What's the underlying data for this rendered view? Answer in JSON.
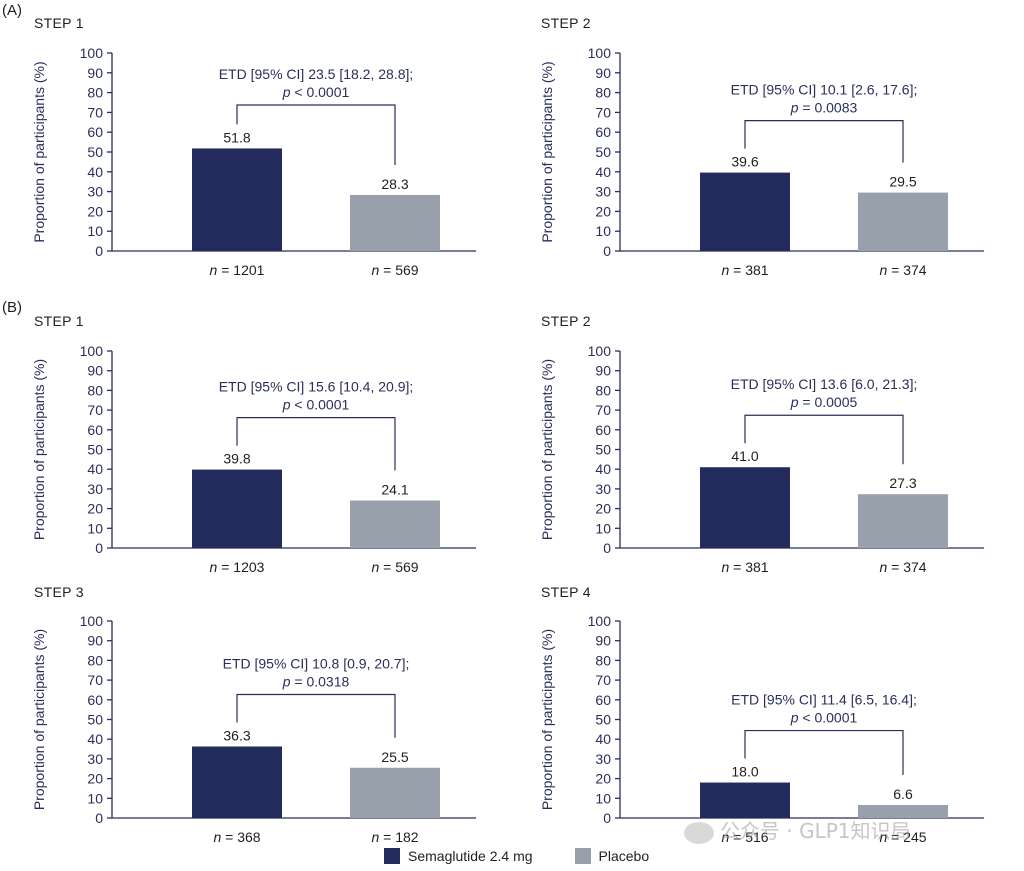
{
  "section_labels": [
    "(A)",
    "(B)"
  ],
  "colors": {
    "semaglutide": "#232a5c",
    "placebo": "#97a0ab",
    "axis": "#2a2f5a"
  },
  "legend": {
    "semaglutide": "Semaglutide 2.4 mg",
    "placebo": "Placebo"
  },
  "watermark": "公众号 · GLP1知识局",
  "chart_data": [
    {
      "type": "bar",
      "section": "(A)",
      "title": "STEP 1",
      "ylabel": "Proportion of participants (%)",
      "ylim": [
        0,
        100
      ],
      "yticks": [
        0,
        10,
        20,
        30,
        40,
        50,
        60,
        70,
        80,
        90,
        100
      ],
      "categories": [
        "n = 1201",
        "n = 569"
      ],
      "values": [
        51.8,
        28.3
      ],
      "value_labels": [
        "51.8",
        "28.3"
      ],
      "annotation": [
        "ETD [95% CI] 23.5 [18.2, 28.8];",
        "p < 0.0001"
      ]
    },
    {
      "type": "bar",
      "section": "(A)",
      "title": "STEP 2",
      "ylabel": "Proportion of participants (%)",
      "ylim": [
        0,
        100
      ],
      "yticks": [
        0,
        10,
        20,
        30,
        40,
        50,
        60,
        70,
        80,
        90,
        100
      ],
      "categories": [
        "n = 381",
        "n = 374"
      ],
      "values": [
        39.6,
        29.5
      ],
      "value_labels": [
        "39.6",
        "29.5"
      ],
      "annotation": [
        "ETD [95% CI] 10.1 [2.6, 17.6];",
        "p = 0.0083"
      ]
    },
    {
      "type": "bar",
      "section": "(B)",
      "title": "STEP 1",
      "ylabel": "Proportion of participants (%)",
      "ylim": [
        0,
        100
      ],
      "yticks": [
        0,
        10,
        20,
        30,
        40,
        50,
        60,
        70,
        80,
        90,
        100
      ],
      "categories": [
        "n = 1203",
        "n = 569"
      ],
      "values": [
        39.8,
        24.1
      ],
      "value_labels": [
        "39.8",
        "24.1"
      ],
      "annotation": [
        "ETD [95% CI] 15.6 [10.4, 20.9];",
        "p < 0.0001"
      ]
    },
    {
      "type": "bar",
      "section": "(B)",
      "title": "STEP 2",
      "ylabel": "Proportion of participants (%)",
      "ylim": [
        0,
        100
      ],
      "yticks": [
        0,
        10,
        20,
        30,
        40,
        50,
        60,
        70,
        80,
        90,
        100
      ],
      "categories": [
        "n = 381",
        "n = 374"
      ],
      "values": [
        41.0,
        27.3
      ],
      "value_labels": [
        "41.0",
        "27.3"
      ],
      "annotation": [
        "ETD [95% CI] 13.6 [6.0, 21.3];",
        "p = 0.0005"
      ]
    },
    {
      "type": "bar",
      "section": "(B)",
      "title": "STEP 3",
      "ylabel": "Proportion of participants (%)",
      "ylim": [
        0,
        100
      ],
      "yticks": [
        0,
        10,
        20,
        30,
        40,
        50,
        60,
        70,
        80,
        90,
        100
      ],
      "categories": [
        "n = 368",
        "n = 182"
      ],
      "values": [
        36.3,
        25.5
      ],
      "value_labels": [
        "36.3",
        "25.5"
      ],
      "annotation": [
        "ETD [95% CI] 10.8 [0.9, 20.7];",
        "p = 0.0318"
      ]
    },
    {
      "type": "bar",
      "section": "(B)",
      "title": "STEP 4",
      "ylabel": "Proportion of participants (%)",
      "ylim": [
        0,
        100
      ],
      "yticks": [
        0,
        10,
        20,
        30,
        40,
        50,
        60,
        70,
        80,
        90,
        100
      ],
      "categories": [
        "n = 516",
        "n = 245"
      ],
      "values": [
        18.0,
        6.6
      ],
      "value_labels": [
        "18.0",
        "6.6"
      ],
      "annotation": [
        "ETD [95% CI] 11.4 [6.5, 16.4];",
        "p < 0.0001"
      ]
    }
  ]
}
